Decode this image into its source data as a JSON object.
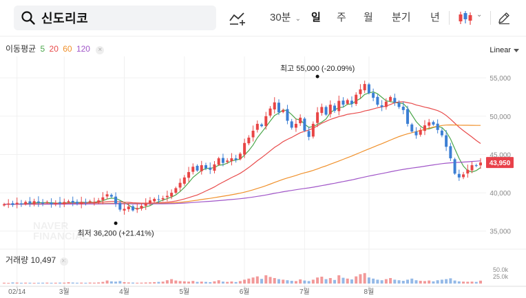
{
  "search": {
    "query": "신도리코"
  },
  "toolbar": {
    "interval_label": "30분",
    "periods": [
      "일",
      "주",
      "월",
      "분기",
      "년"
    ],
    "active_period": "일"
  },
  "ma_legend": {
    "title": "이동평균",
    "periods": [
      "5",
      "20",
      "60",
      "120"
    ]
  },
  "scale_label": "Linear",
  "volume_legend": {
    "label": "거래량",
    "value": "10,497"
  },
  "colors": {
    "up": "#e84545",
    "down": "#3c7fd4",
    "ma5": "#4aa64a",
    "ma20": "#e84a4a",
    "ma60": "#f0902a",
    "ma120": "#a055c8",
    "price_tag": "#e8414a"
  },
  "chart_data": {
    "type": "candlestick",
    "y_ticks": [
      "55,000",
      "50,000",
      "45,000",
      "40,000",
      "35,000"
    ],
    "y_tick_values": [
      55000,
      50000,
      45000,
      40000,
      35000
    ],
    "ylim": [
      33000,
      57800
    ],
    "x_labels": [
      "02/14",
      "3월",
      "4월",
      "5월",
      "6월",
      "7월",
      "8월"
    ],
    "x_label_index": [
      3,
      14,
      28,
      42,
      56,
      70,
      85
    ],
    "current_price": "43,950",
    "current_price_value": 43950,
    "high_annotation": {
      "text": "최고 55,000 (-20.09%)",
      "index": 73,
      "value": 55000
    },
    "low_annotation": {
      "text": "최저 36,200 (+21.41%)",
      "index": 26,
      "value": 36200
    },
    "volume_ticks": [
      "50.0k",
      "25.0k"
    ],
    "volume_tick_values": [
      50000,
      25000
    ],
    "volume_max": 75000,
    "ma_periods": [
      5,
      20,
      60,
      120
    ],
    "closes": [
      38500,
      38600,
      38400,
      38700,
      38500,
      38800,
      38600,
      38900,
      38700,
      38600,
      38800,
      38500,
      38700,
      38600,
      38800,
      38900,
      38700,
      38600,
      38800,
      38700,
      38900,
      38800,
      39000,
      39400,
      39800,
      39500,
      38600,
      37800,
      37900,
      38200,
      37700,
      38000,
      38300,
      38600,
      39000,
      39200,
      39100,
      39300,
      39600,
      40000,
      40600,
      41300,
      42000,
      42700,
      43400,
      42900,
      43600,
      43200,
      43000,
      43700,
      44500,
      43900,
      44200,
      44500,
      44300,
      45100,
      46500,
      47200,
      48100,
      49000,
      48700,
      50000,
      51000,
      51800,
      50500,
      50800,
      49400,
      48500,
      49000,
      49800,
      48100,
      47300,
      49000,
      50500,
      51200,
      50200,
      51500,
      50700,
      52000,
      51500,
      52100,
      51600,
      52800,
      53500,
      54200,
      53000,
      52400,
      51500,
      51200,
      51900,
      52500,
      51800,
      51200,
      50800,
      49000,
      48000,
      47500,
      48200,
      48800,
      49200,
      48900,
      48200,
      47500,
      46000,
      44500,
      42500,
      42000,
      42400,
      43000,
      43600,
      43500,
      43950
    ],
    "volumes": [
      3000,
      2500,
      4000,
      3500,
      2800,
      3200,
      3000,
      2600,
      2900,
      3100,
      3300,
      2800,
      3000,
      3400,
      3200,
      4800,
      3600,
      3000,
      3300,
      2900,
      3500,
      3200,
      4000,
      6000,
      11000,
      8000,
      7000,
      9000,
      5000,
      4000,
      3500,
      3000,
      3200,
      3800,
      4200,
      5200,
      6000,
      7000,
      12000,
      16000,
      11000,
      9000,
      8000,
      7000,
      9500,
      6000,
      7000,
      6000,
      5000,
      8000,
      12000,
      7000,
      6000,
      7500,
      5500,
      9000,
      14000,
      18000,
      22000,
      26000,
      17000,
      30000,
      24000,
      20000,
      16000,
      14000,
      12000,
      10000,
      9000,
      15000,
      11000,
      9000,
      14000,
      22000,
      25000,
      16000,
      20000,
      13000,
      30000,
      21000,
      18000,
      15000,
      26000,
      34000,
      38000,
      22000,
      18000,
      14000,
      12000,
      16000,
      20000,
      14000,
      12000,
      10000,
      14000,
      18000,
      12000,
      10000,
      9000,
      11000,
      8000,
      12000,
      14000,
      16000,
      19000,
      11000,
      8000,
      7000,
      6500,
      7000,
      6000,
      10497
    ],
    "series": [
      {
        "name": "MA5",
        "period": 5
      },
      {
        "name": "MA20",
        "period": 20
      },
      {
        "name": "MA60",
        "period": 60
      },
      {
        "name": "MA120",
        "period": 120
      }
    ]
  }
}
